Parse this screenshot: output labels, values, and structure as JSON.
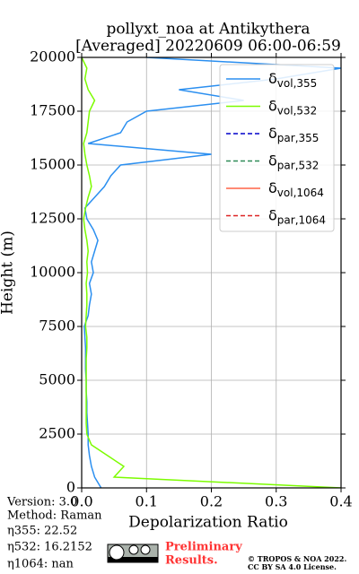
{
  "chart_data": {
    "type": "line",
    "title": [
      "pollyxt_noa at Antikythera",
      "[Averaged] 20220609 06:00-06:59"
    ],
    "xlabel": "Depolarization Ratio",
    "ylabel": "Height (m)",
    "xlim": [
      0,
      0.4
    ],
    "xticks": [
      {
        "value": 0,
        "label": "0.0"
      },
      0.1,
      0.2,
      0.3,
      0.4
    ],
    "ylim": [
      0,
      20000
    ],
    "yticks": [
      0,
      2500,
      5000,
      7500,
      10000,
      12500,
      15000,
      17500,
      20000
    ],
    "grid": true,
    "legend": "upper right",
    "y": [
      0,
      500,
      1000,
      1500,
      2000,
      2500,
      3000,
      3500,
      4000,
      4500,
      5000,
      5500,
      6000,
      6500,
      7000,
      7500,
      8000,
      8500,
      9000,
      9500,
      10000,
      10500,
      11000,
      11500,
      12000,
      12500,
      13000,
      13500,
      14000,
      14500,
      15000,
      15500,
      16000,
      16500,
      17000,
      17500,
      18000,
      18500,
      19000,
      19500,
      20000
    ],
    "series": [
      {
        "name": "δvol,355",
        "color": "#2b8ff0",
        "style": "solid",
        "values": [
          0.03,
          0.02,
          0.015,
          0.012,
          0.01,
          0.01,
          0.009,
          0.008,
          0.008,
          0.007,
          0.007,
          0.006,
          0.006,
          0.006,
          0.005,
          0.004,
          0.01,
          0.012,
          0.015,
          0.012,
          0.018,
          0.015,
          0.02,
          0.025,
          0.018,
          0.008,
          0.005,
          0.02,
          0.035,
          0.045,
          0.06,
          0.2,
          0.01,
          0.06,
          0.07,
          0.1,
          0.25,
          0.15,
          0.3,
          0.4,
          0.1
        ]
      },
      {
        "name": "δvol,532",
        "color": "#7cfc00",
        "style": "solid",
        "values": [
          0.4,
          0.05,
          0.065,
          0.04,
          0.015,
          0.008,
          0.007,
          0.007,
          0.007,
          0.007,
          0.007,
          0.007,
          0.007,
          0.008,
          0.008,
          0.006,
          0.007,
          0.008,
          0.008,
          0.007,
          0.009,
          0.008,
          0.01,
          0.008,
          0.005,
          0.003,
          0.006,
          0.01,
          0.015,
          0.012,
          0.008,
          0.005,
          0.003,
          0.008,
          0.01,
          0.012,
          0.02,
          0.01,
          0.005,
          0.008,
          0
        ]
      },
      {
        "name": "δpar,355",
        "color": "#0000cc",
        "style": "dashed",
        "values": [
          null,
          null,
          null,
          null,
          null,
          null,
          null,
          null,
          null,
          null,
          null,
          null,
          null,
          null,
          null,
          null,
          null,
          null,
          null,
          null,
          null,
          null,
          null,
          null,
          null,
          null,
          null,
          null,
          null,
          null,
          null,
          null,
          null,
          null,
          null,
          null,
          null,
          null,
          null,
          null,
          null
        ]
      },
      {
        "name": "δpar,532",
        "color": "#2e8b57",
        "style": "dashed",
        "values": [
          null,
          null,
          null,
          null,
          null,
          null,
          null,
          null,
          null,
          null,
          null,
          null,
          null,
          null,
          null,
          null,
          null,
          null,
          null,
          null,
          null,
          null,
          null,
          null,
          null,
          null,
          null,
          null,
          null,
          null,
          null,
          null,
          null,
          null,
          null,
          null,
          null,
          null,
          null,
          null,
          null
        ]
      },
      {
        "name": "δvol,1064",
        "color": "#ff6347",
        "style": "solid",
        "values": [
          null,
          null,
          null,
          null,
          null,
          null,
          null,
          null,
          null,
          null,
          null,
          null,
          null,
          null,
          null,
          null,
          null,
          null,
          null,
          null,
          null,
          null,
          null,
          null,
          null,
          null,
          null,
          null,
          null,
          null,
          null,
          null,
          null,
          null,
          null,
          null,
          null,
          null,
          null,
          null,
          null
        ]
      },
      {
        "name": "δpar,1064",
        "color": "#dd2222",
        "style": "dashed",
        "values": [
          null,
          null,
          null,
          null,
          null,
          null,
          null,
          null,
          null,
          null,
          null,
          null,
          null,
          null,
          null,
          null,
          null,
          null,
          null,
          null,
          null,
          null,
          null,
          null,
          null,
          null,
          null,
          null,
          null,
          null,
          null,
          null,
          null,
          null,
          null,
          null,
          null,
          null,
          null,
          null,
          null
        ]
      }
    ],
    "info": [
      "Version: 3.0",
      "Method: Raman",
      "η355:  22.52",
      "η532: 16.2152",
      "η1064:    nan"
    ],
    "preliminary": [
      "Preliminary",
      "Results."
    ],
    "copyright": [
      "© TROPOS & NOA 2022.",
      "CC BY SA 4.0 License."
    ]
  }
}
